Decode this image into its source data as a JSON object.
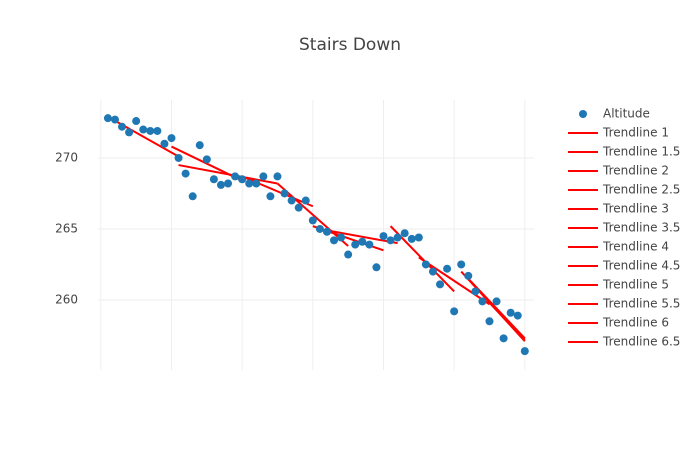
{
  "chart_data": {
    "type": "scatter",
    "title": "Stairs Down",
    "xlim": [
      -0.4,
      61.3
    ],
    "ylim": [
      255.07,
      274.08
    ],
    "xticks": [
      0,
      10,
      20,
      30,
      40,
      50,
      60
    ],
    "yticks": [
      260,
      265,
      270
    ],
    "grid": true,
    "legend": "right",
    "series": [
      {
        "name": "Altitude",
        "mode": "markers",
        "color": "#1f77b4",
        "x": [
          1,
          2,
          3,
          4,
          5,
          6,
          7,
          8,
          9,
          10,
          11,
          12,
          13,
          14,
          15,
          16,
          17,
          18,
          19,
          20,
          21,
          22,
          23,
          24,
          25,
          26,
          27,
          28,
          29,
          30,
          31,
          32,
          33,
          34,
          35,
          36,
          37,
          38,
          39,
          40,
          41,
          42,
          43,
          44,
          45,
          46,
          47,
          48,
          49,
          50,
          51,
          52,
          53,
          54,
          55,
          56,
          57,
          58,
          59,
          60
        ],
        "values": [
          272.8,
          272.7,
          272.2,
          271.8,
          272.6,
          272.0,
          271.9,
          271.9,
          271.0,
          271.4,
          270.0,
          268.9,
          267.3,
          270.9,
          269.9,
          268.5,
          268.1,
          268.2,
          268.7,
          268.5,
          268.2,
          268.2,
          268.7,
          267.3,
          268.7,
          267.5,
          267.0,
          266.5,
          267.0,
          265.6,
          265.0,
          264.8,
          264.2,
          264.4,
          263.2,
          263.9,
          264.1,
          263.9,
          262.3,
          264.5,
          264.2,
          264.4,
          264.7,
          264.3,
          264.4,
          262.5,
          262.0,
          261.1,
          262.2,
          259.2,
          262.5,
          261.7,
          260.6,
          259.9,
          258.5,
          259.9,
          257.3,
          259.1,
          258.9,
          256.4
        ]
      },
      {
        "name": "Trendline 1",
        "mode": "lines",
        "color": "#ff0000",
        "x": [
          1,
          11
        ],
        "values": [
          272.9,
          270.1
        ]
      },
      {
        "name": "Trendline 1.5",
        "mode": "lines",
        "color": "#ff0000",
        "x": [
          11,
          25
        ],
        "values": [
          269.5,
          268.2
        ]
      },
      {
        "name": "Trendline 2",
        "mode": "lines",
        "color": "#ff0000",
        "x": [
          10,
          20
        ],
        "values": [
          270.8,
          268.4
        ]
      },
      {
        "name": "Trendline 2.5",
        "mode": "lines",
        "color": "#ff0000",
        "x": [
          20,
          30
        ],
        "values": [
          268.7,
          266.6
        ]
      },
      {
        "name": "Trendline 3",
        "mode": "lines",
        "color": "#ff0000",
        "x": [
          25,
          35
        ],
        "values": [
          268.2,
          263.8
        ]
      },
      {
        "name": "Trendline 3.5",
        "mode": "lines",
        "color": "#ff0000",
        "x": [
          30,
          40
        ],
        "values": [
          265.2,
          263.5
        ]
      },
      {
        "name": "Trendline 4",
        "mode": "lines",
        "color": "#ff0000",
        "x": [
          32,
          42
        ],
        "values": [
          264.9,
          264.0
        ]
      },
      {
        "name": "Trendline 4.5",
        "mode": "lines",
        "color": "#ff0000",
        "x": [
          41,
          50
        ],
        "values": [
          265.2,
          260.6
        ]
      },
      {
        "name": "Trendline 5",
        "mode": "lines",
        "color": "#ff0000",
        "x": [
          45,
          55
        ],
        "values": [
          263.0,
          259.7
        ]
      },
      {
        "name": "Trendline 5.5",
        "mode": "lines",
        "color": "#ff0000",
        "x": [
          51,
          60
        ],
        "values": [
          262.0,
          257.1
        ]
      },
      {
        "name": "Trendline 6",
        "mode": "lines",
        "color": "#ff0000",
        "x": [
          52,
          60
        ],
        "values": [
          261.5,
          257.3
        ]
      },
      {
        "name": "Trendline 6.5",
        "mode": "lines",
        "color": "#ff0000",
        "x": [
          55,
          60
        ],
        "values": [
          259.8,
          257.2
        ]
      }
    ]
  }
}
